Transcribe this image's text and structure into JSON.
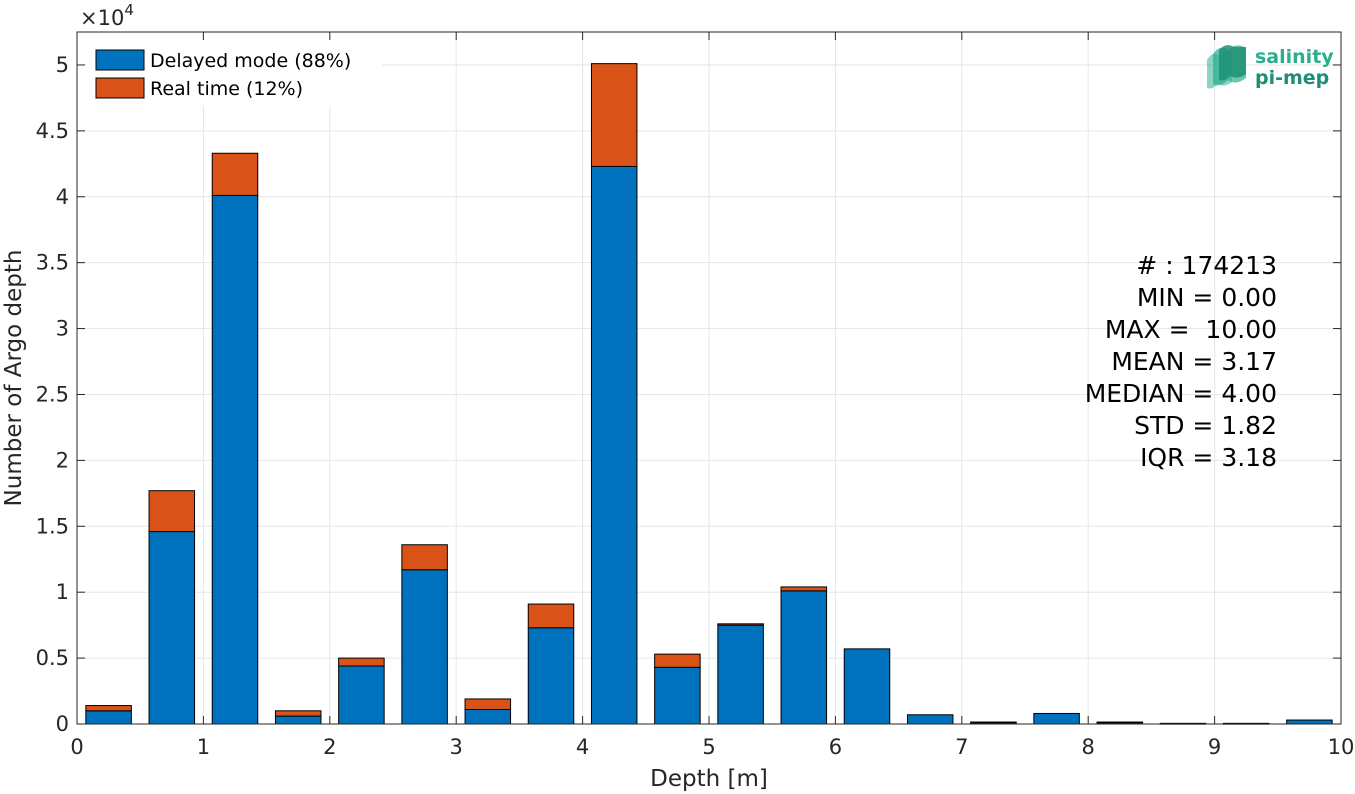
{
  "chart_data": {
    "type": "bar",
    "stacked": true,
    "xlabel": "Depth [m]",
    "ylabel": "Number of Argo depth",
    "y_exponent_label": "×10",
    "y_exponent_power": "4",
    "xlim": [
      0,
      10
    ],
    "ylim": [
      0,
      52500
    ],
    "grid": true,
    "legend_position": "top-left",
    "bin_width": 0.5,
    "x": [
      0.25,
      0.75,
      1.25,
      1.75,
      2.25,
      2.75,
      3.25,
      3.75,
      4.25,
      4.75,
      5.25,
      5.75,
      6.25,
      6.75,
      7.25,
      7.75,
      8.25,
      8.75,
      9.25,
      9.75
    ],
    "x_ticks": [
      "0",
      "1",
      "2",
      "3",
      "4",
      "5",
      "6",
      "7",
      "8",
      "9",
      "10"
    ],
    "y_ticks": [
      "0",
      "0.5",
      "1",
      "1.5",
      "2",
      "2.5",
      "3",
      "3.5",
      "4",
      "4.5",
      "5"
    ],
    "series": [
      {
        "name": "Delayed mode (88%)",
        "color": "#0072BD",
        "values": [
          1000,
          14600,
          40100,
          600,
          4400,
          11700,
          1100,
          7300,
          42300,
          4300,
          7500,
          10100,
          5700,
          700,
          100,
          800,
          100,
          50,
          50,
          300
        ]
      },
      {
        "name": "Real time (12%)",
        "color": "#D95319",
        "values": [
          400,
          3100,
          3200,
          400,
          600,
          1900,
          800,
          1800,
          7800,
          1000,
          100,
          300,
          0,
          0,
          50,
          0,
          50,
          0,
          0,
          0
        ]
      }
    ],
    "annotations": [
      "# : 174213",
      "MIN = 0.00",
      "MAX =  10.00",
      "MEAN = 3.17",
      "MEDIAN = 4.00",
      "STD = 1.82",
      "IQR = 3.18"
    ]
  },
  "logo": {
    "line1": "salinity",
    "line2": "pi-mep",
    "color": "#2bae8f"
  }
}
